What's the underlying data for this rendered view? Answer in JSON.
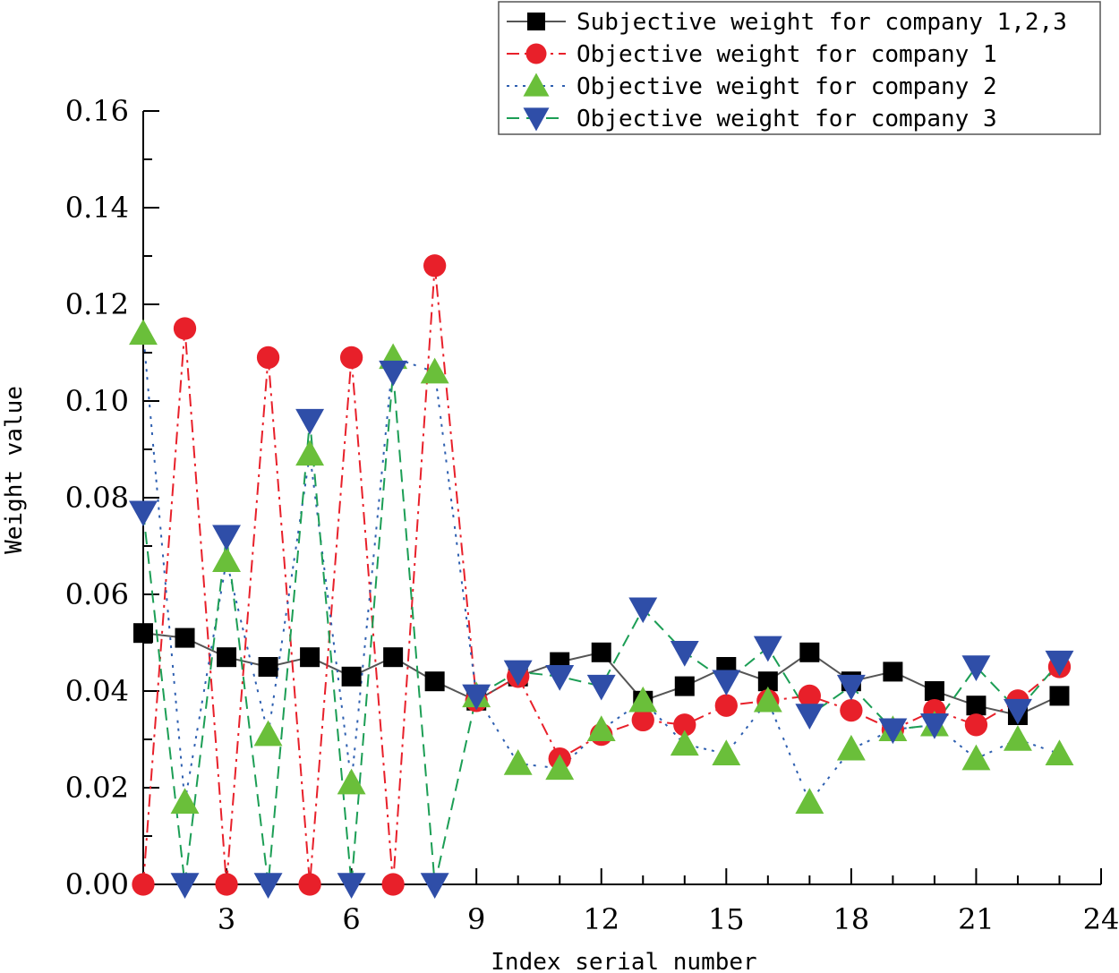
{
  "chart_data": {
    "type": "line",
    "title": "",
    "xlabel": "Index serial number",
    "ylabel": "Weight value",
    "xlim": [
      1,
      24
    ],
    "ylim": [
      0,
      0.16
    ],
    "xticks": [
      3,
      6,
      9,
      12,
      15,
      18,
      21,
      24
    ],
    "yticks": [
      0,
      0.02,
      0.04,
      0.06,
      0.08,
      0.1,
      0.12,
      0.14,
      0.16
    ],
    "ytick_labels": [
      "0.00",
      "0.02",
      "0.04",
      "0.06",
      "0.08",
      "0.10",
      "0.12",
      "0.14",
      "0.16"
    ],
    "legend_position": "top-right",
    "x": [
      1,
      2,
      3,
      4,
      5,
      6,
      7,
      8,
      9,
      10,
      11,
      12,
      13,
      14,
      15,
      16,
      17,
      18,
      19,
      20,
      21,
      22,
      23
    ],
    "series": [
      {
        "name": "Subjective weight for company 1,2,3",
        "color": "#000000",
        "line_color": "#555555",
        "marker": "square",
        "dash": "solid",
        "values": [
          0.052,
          0.051,
          0.047,
          0.045,
          0.047,
          0.043,
          0.047,
          0.042,
          0.038,
          0.043,
          0.046,
          0.048,
          0.038,
          0.041,
          0.045,
          0.042,
          0.048,
          0.042,
          0.044,
          0.04,
          0.037,
          0.035,
          0.039
        ]
      },
      {
        "name": "Objective weight for company 1",
        "color": "#e8202a",
        "line_color": "#e8202a",
        "marker": "circle",
        "dash": "dashdot",
        "values": [
          0.0,
          0.115,
          0.0,
          0.109,
          0.0,
          0.109,
          0.0,
          0.128,
          0.038,
          0.043,
          0.026,
          0.031,
          0.034,
          0.033,
          0.037,
          0.038,
          0.039,
          0.036,
          0.032,
          0.036,
          0.033,
          0.038,
          0.045
        ]
      },
      {
        "name": "Objective weight for company 2",
        "color": "#6abf3a",
        "line_color": "#2e5fb0",
        "marker": "triangle-up",
        "dash": "dashdotdot",
        "values": [
          0.114,
          0.017,
          0.067,
          0.031,
          0.089,
          0.021,
          0.109,
          0.106,
          0.039,
          0.025,
          0.024,
          0.032,
          0.038,
          0.029,
          0.027,
          0.038,
          0.017,
          0.028,
          0.032,
          0.033,
          0.026,
          0.03,
          0.027
        ]
      },
      {
        "name": "Objective weight for company 3",
        "color": "#2f4ea8",
        "line_color": "#1c9e55",
        "marker": "triangle-down",
        "dash": "dashed",
        "values": [
          0.077,
          0.0,
          0.072,
          0.0,
          0.096,
          0.0,
          0.106,
          0.0,
          0.039,
          0.044,
          0.043,
          0.041,
          0.057,
          0.048,
          0.042,
          0.049,
          0.035,
          0.041,
          0.032,
          0.033,
          0.045,
          0.036,
          0.046
        ]
      }
    ]
  }
}
